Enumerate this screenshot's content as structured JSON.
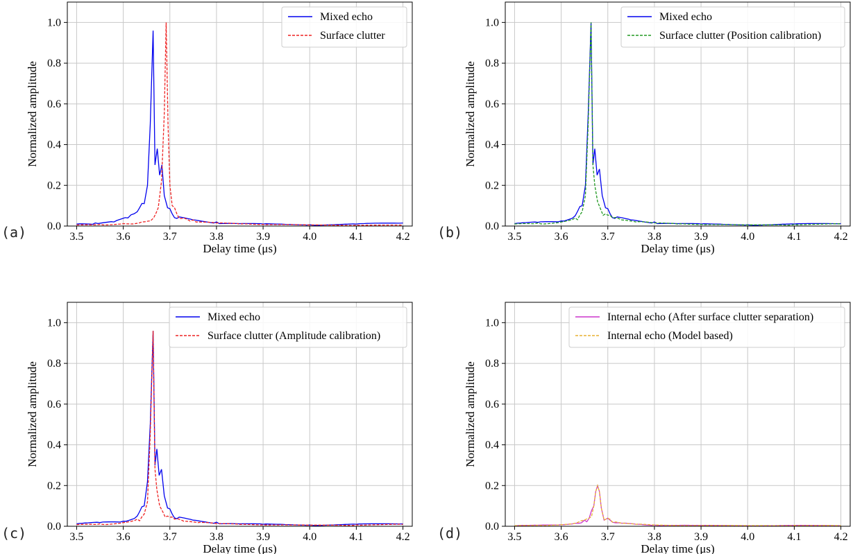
{
  "colors": {
    "mixed": "#0000ee",
    "clutter_red": "#ee2222",
    "clutter_green": "#229922",
    "internal_magenta": "#cc33cc",
    "internal_orange": "#e8b030"
  },
  "chart_data": [
    {
      "type": "line",
      "panel": "(a)",
      "xlabel": "Delay time (μs)",
      "ylabel": "Normalized amplitude",
      "xlim": [
        3.48,
        4.22
      ],
      "ylim": [
        0,
        1.1
      ],
      "xticks": [
        "3.5",
        "3.6",
        "3.7",
        "3.8",
        "3.9",
        "4.0",
        "4.1",
        "4.2"
      ],
      "yticks": [
        "0.0",
        "0.2",
        "0.4",
        "0.6",
        "0.8",
        "1.0"
      ],
      "grid": true,
      "legend_position": "top-right",
      "series": [
        {
          "name": "Mixed echo",
          "color": "#0000ee",
          "dash": "solid",
          "x": [
            3.5,
            3.54,
            3.58,
            3.61,
            3.63,
            3.645,
            3.652,
            3.658,
            3.664,
            3.668,
            3.673,
            3.678,
            3.683,
            3.688,
            3.695,
            3.705,
            3.72,
            3.75,
            3.8,
            3.85,
            3.9,
            4.0,
            4.1,
            4.2
          ],
          "y": [
            0.01,
            0.015,
            0.02,
            0.04,
            0.07,
            0.11,
            0.2,
            0.5,
            0.96,
            0.3,
            0.38,
            0.25,
            0.3,
            0.15,
            0.09,
            0.06,
            0.045,
            0.03,
            0.02,
            0.012,
            0.01,
            0.006,
            0.01,
            0.015
          ]
        },
        {
          "name": "Surface clutter",
          "color": "#ee2222",
          "dash": "dashed",
          "x": [
            3.5,
            3.55,
            3.6,
            3.64,
            3.665,
            3.675,
            3.682,
            3.688,
            3.692,
            3.696,
            3.7,
            3.705,
            3.715,
            3.73,
            3.75,
            3.8,
            3.85,
            3.9,
            4.0,
            4.1,
            4.2
          ],
          "y": [
            0.005,
            0.008,
            0.012,
            0.02,
            0.04,
            0.09,
            0.22,
            0.55,
            1.0,
            0.5,
            0.2,
            0.1,
            0.06,
            0.04,
            0.03,
            0.015,
            0.01,
            0.008,
            0.005,
            0.005,
            0.004
          ]
        }
      ]
    },
    {
      "type": "line",
      "panel": "(b)",
      "xlabel": "Delay time (μs)",
      "ylabel": "Normalized amplitude",
      "xlim": [
        3.48,
        4.22
      ],
      "ylim": [
        0,
        1.1
      ],
      "xticks": [
        "3.5",
        "3.6",
        "3.7",
        "3.8",
        "3.9",
        "4.0",
        "4.1",
        "4.2"
      ],
      "yticks": [
        "0.0",
        "0.2",
        "0.4",
        "0.6",
        "0.8",
        "1.0"
      ],
      "grid": true,
      "legend_position": "top-right",
      "series": [
        {
          "name": "Mixed echo",
          "color": "#0000ee",
          "dash": "solid",
          "x": [
            3.5,
            3.55,
            3.6,
            3.63,
            3.645,
            3.652,
            3.658,
            3.664,
            3.668,
            3.672,
            3.677,
            3.682,
            3.688,
            3.695,
            3.705,
            3.72,
            3.75,
            3.8,
            3.85,
            3.9,
            4.0,
            4.1,
            4.2
          ],
          "y": [
            0.012,
            0.018,
            0.025,
            0.05,
            0.1,
            0.2,
            0.55,
            1.0,
            0.3,
            0.38,
            0.25,
            0.28,
            0.15,
            0.09,
            0.06,
            0.045,
            0.03,
            0.02,
            0.012,
            0.01,
            0.006,
            0.01,
            0.012
          ]
        },
        {
          "name": "Surface clutter (Position calibration)",
          "color": "#229922",
          "dash": "dashed",
          "x": [
            3.5,
            3.55,
            3.6,
            3.63,
            3.645,
            3.652,
            3.658,
            3.664,
            3.668,
            3.672,
            3.678,
            3.685,
            3.695,
            3.71,
            3.73,
            3.76,
            3.8,
            3.85,
            3.9,
            4.0,
            4.1,
            4.2
          ],
          "y": [
            0.01,
            0.015,
            0.02,
            0.04,
            0.07,
            0.15,
            0.5,
            1.0,
            0.3,
            0.2,
            0.12,
            0.08,
            0.06,
            0.04,
            0.03,
            0.02,
            0.015,
            0.01,
            0.008,
            0.005,
            0.008,
            0.01
          ]
        }
      ]
    },
    {
      "type": "line",
      "panel": "(c)",
      "xlabel": "Delay time (μs)",
      "ylabel": "Normalized amplitude",
      "xlim": [
        3.48,
        4.22
      ],
      "ylim": [
        0,
        1.1
      ],
      "xticks": [
        "3.5",
        "3.6",
        "3.7",
        "3.8",
        "3.9",
        "4.0",
        "4.1",
        "4.2"
      ],
      "yticks": [
        "0.0",
        "0.2",
        "0.4",
        "0.6",
        "0.8",
        "1.0"
      ],
      "grid": true,
      "legend_position": "top-right",
      "series": [
        {
          "name": "Mixed echo",
          "color": "#0000ee",
          "dash": "solid",
          "x": [
            3.5,
            3.55,
            3.6,
            3.63,
            3.645,
            3.652,
            3.658,
            3.664,
            3.668,
            3.672,
            3.677,
            3.682,
            3.688,
            3.695,
            3.705,
            3.72,
            3.75,
            3.8,
            3.85,
            3.9,
            4.0,
            4.1,
            4.2
          ],
          "y": [
            0.012,
            0.018,
            0.025,
            0.05,
            0.1,
            0.22,
            0.5,
            0.96,
            0.3,
            0.38,
            0.25,
            0.28,
            0.15,
            0.09,
            0.06,
            0.045,
            0.03,
            0.02,
            0.012,
            0.01,
            0.006,
            0.01,
            0.012
          ]
        },
        {
          "name": "Surface clutter (Amplitude calibration)",
          "color": "#ee2222",
          "dash": "dashed",
          "x": [
            3.5,
            3.55,
            3.6,
            3.63,
            3.645,
            3.652,
            3.658,
            3.664,
            3.668,
            3.672,
            3.678,
            3.685,
            3.695,
            3.71,
            3.73,
            3.76,
            3.8,
            3.85,
            3.9,
            4.0,
            4.1,
            4.2
          ],
          "y": [
            0.008,
            0.012,
            0.018,
            0.035,
            0.06,
            0.12,
            0.45,
            0.96,
            0.28,
            0.18,
            0.1,
            0.07,
            0.05,
            0.035,
            0.025,
            0.018,
            0.013,
            0.009,
            0.007,
            0.005,
            0.007,
            0.009
          ]
        }
      ]
    },
    {
      "type": "line",
      "panel": "(d)",
      "xlabel": "Delay time (μs)",
      "ylabel": "Normalized amplitude",
      "xlim": [
        3.48,
        4.22
      ],
      "ylim": [
        0,
        1.1
      ],
      "xticks": [
        "3.5",
        "3.6",
        "3.7",
        "3.8",
        "3.9",
        "4.0",
        "4.1",
        "4.2"
      ],
      "yticks": [
        "0.0",
        "0.2",
        "0.4",
        "0.6",
        "0.8",
        "1.0"
      ],
      "grid": true,
      "legend_position": "top-right",
      "series": [
        {
          "name": "Internal echo (After surface clutter separation)",
          "color": "#cc33cc",
          "dash": "solid",
          "x": [
            3.5,
            3.55,
            3.6,
            3.63,
            3.65,
            3.66,
            3.67,
            3.674,
            3.678,
            3.682,
            3.686,
            3.692,
            3.7,
            3.71,
            3.73,
            3.76,
            3.8,
            3.9,
            4.0,
            4.1,
            4.2
          ],
          "y": [
            0.003,
            0.005,
            0.008,
            0.015,
            0.03,
            0.04,
            0.1,
            0.17,
            0.2,
            0.17,
            0.09,
            0.03,
            0.04,
            0.02,
            0.015,
            0.01,
            0.006,
            0.004,
            0.003,
            0.004,
            0.003
          ]
        },
        {
          "name": "Internal echo (Model based)",
          "color": "#e8b030",
          "dash": "dashed",
          "x": [
            3.5,
            3.55,
            3.6,
            3.63,
            3.65,
            3.66,
            3.67,
            3.674,
            3.678,
            3.682,
            3.686,
            3.692,
            3.7,
            3.71,
            3.73,
            3.76,
            3.8,
            3.9,
            4.0,
            4.1,
            4.2
          ],
          "y": [
            0.003,
            0.005,
            0.008,
            0.015,
            0.03,
            0.04,
            0.1,
            0.17,
            0.2,
            0.17,
            0.09,
            0.03,
            0.04,
            0.02,
            0.015,
            0.01,
            0.006,
            0.004,
            0.003,
            0.004,
            0.003
          ]
        }
      ]
    }
  ]
}
